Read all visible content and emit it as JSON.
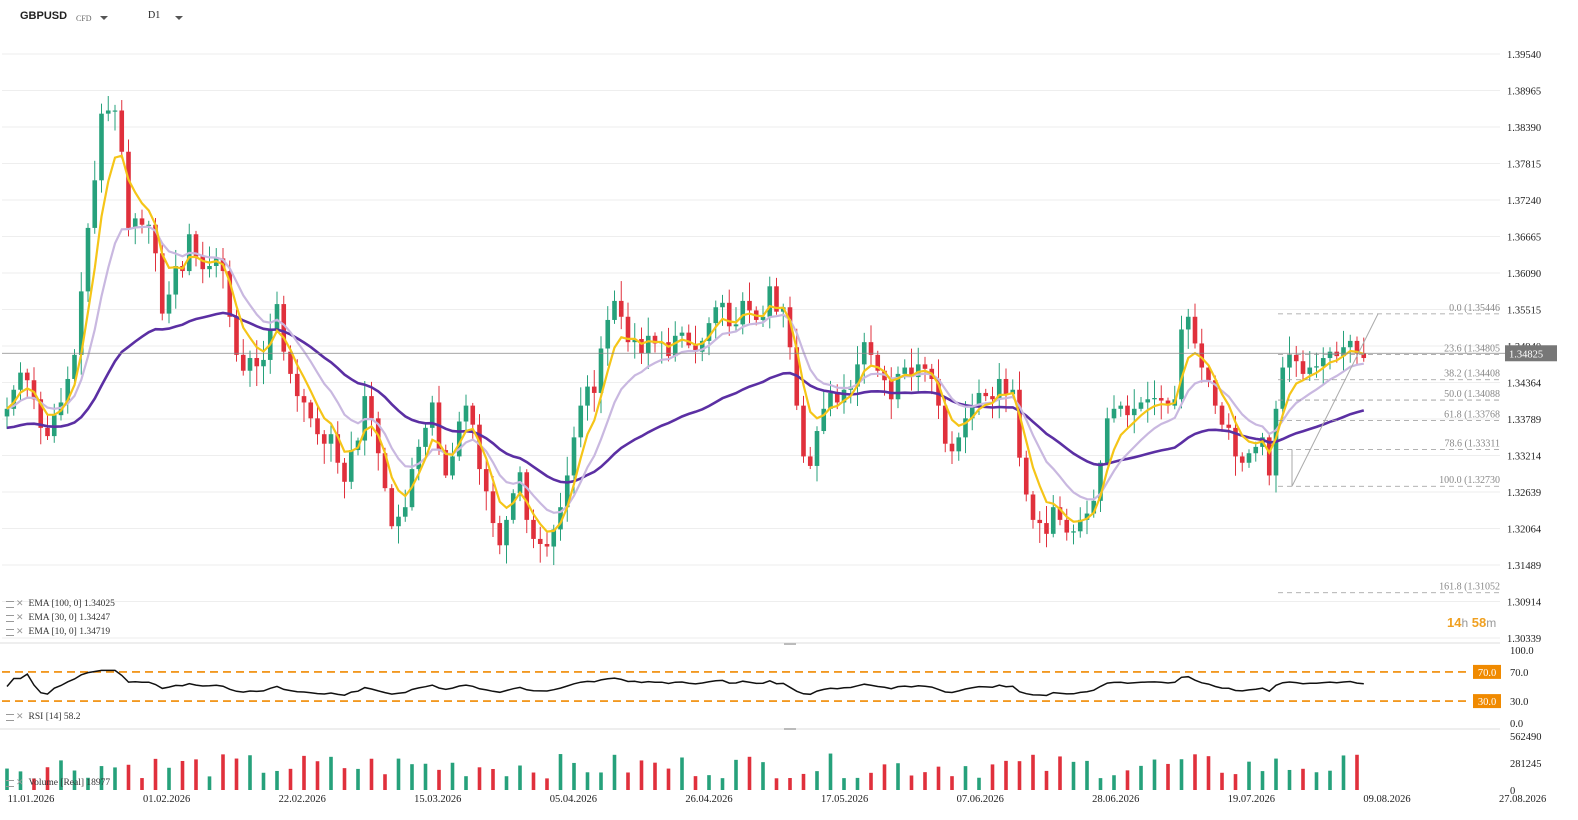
{
  "header": {
    "symbol": "GBPUSD",
    "instrument_type": "CFD",
    "timeframe": "D1"
  },
  "indicators": [
    {
      "label": "EMA [100, 0] 1.34025"
    },
    {
      "label": "EMA [30, 0] 1.34247"
    },
    {
      "label": "EMA [10, 0] 1.34719"
    }
  ],
  "rsi_label": "RSI [14] 58.2",
  "volume_label": "Volume [Real] 18977",
  "countdown": {
    "hours": "14",
    "h": "h",
    "minutes": "58",
    "m": "m"
  },
  "current_price": "1.34825",
  "colors": {
    "up": "#26a17b",
    "down": "#e0303c",
    "ema10": "#f5c518",
    "ema30": "#c9b8e0",
    "ema100": "#5b2fa3",
    "fib": "#999999",
    "rsi_band": "#f08a00",
    "price_tag": "#777777"
  },
  "chart_data": {
    "type": "candlestick",
    "price_axis_ticks": [
      "1.39540",
      "1.38965",
      "1.38390",
      "1.37815",
      "1.37240",
      "1.36665",
      "1.36090",
      "1.35515",
      "1.34940",
      "1.34364",
      "1.33789",
      "1.33214",
      "1.32639",
      "1.32064",
      "1.31489",
      "1.30914",
      "1.30339"
    ],
    "ylim": [
      1.30339,
      1.3954
    ],
    "date_ticks": [
      "11.01.2026",
      "01.02.2026",
      "22.02.2026",
      "15.03.2026",
      "05.04.2026",
      "26.04.2026",
      "17.05.2026",
      "07.06.2026",
      "28.06.2026",
      "19.07.2026",
      "09.08.2026",
      "27.08.2026"
    ],
    "closes": [
      1.3395,
      1.3425,
      1.3452,
      1.344,
      1.341,
      1.3365,
      1.3352,
      1.3385,
      1.3405,
      1.3442,
      1.348,
      1.358,
      1.368,
      1.3755,
      1.386,
      1.3865,
      1.3865,
      1.38,
      1.368,
      1.3695,
      1.3685,
      1.3685,
      1.364,
      1.3545,
      1.3575,
      1.362,
      1.3612,
      1.367,
      1.3635,
      1.3615,
      1.362,
      1.3632,
      1.3612,
      1.354,
      1.348,
      1.3455,
      1.3475,
      1.3462,
      1.3472,
      1.352,
      1.356,
      1.3485,
      1.345,
      1.3415,
      1.3405,
      1.338,
      1.3355,
      1.334,
      1.3355,
      1.331,
      1.328,
      1.333,
      1.3345,
      1.3415,
      1.338,
      1.3325,
      1.327,
      1.321,
      1.3225,
      1.324,
      1.33,
      1.3335,
      1.3365,
      1.3405,
      1.333,
      1.329,
      1.332,
      1.3375,
      1.34,
      1.337,
      1.33,
      1.3265,
      1.3215,
      1.318,
      1.322,
      1.3262,
      1.3295,
      1.322,
      1.319,
      1.3182,
      1.3178,
      1.3205,
      1.324,
      1.329,
      1.335,
      1.34,
      1.343,
      1.342,
      1.349,
      1.3535,
      1.3565,
      1.354,
      1.35,
      1.3505,
      1.3482,
      1.351,
      1.3498,
      1.35,
      1.3478,
      1.351,
      1.3515,
      1.3495,
      1.3485,
      1.3502,
      1.353,
      1.3555,
      1.3562,
      1.3525,
      1.3528,
      1.3565,
      1.355,
      1.3535,
      1.354,
      1.3588,
      1.3548,
      1.3555,
      1.3492,
      1.34,
      1.332,
      1.3305,
      1.336,
      1.3395,
      1.342,
      1.3405,
      1.3425,
      1.343,
      1.3465,
      1.35,
      1.348,
      1.3455,
      1.344,
      1.341,
      1.345,
      1.346,
      1.3445,
      1.3465,
      1.3458,
      1.3442,
      1.34,
      1.334,
      1.3328,
      1.335,
      1.338,
      1.34,
      1.342,
      1.3415,
      1.341,
      1.3442,
      1.3418,
      1.3425,
      1.3318,
      1.326,
      1.322,
      1.3215,
      1.3198,
      1.324,
      1.322,
      1.32,
      1.3202,
      1.322,
      1.323,
      1.325,
      1.331,
      1.338,
      1.3395,
      1.34,
      1.3385,
      1.3395,
      1.3405,
      1.341,
      1.3412,
      1.3408,
      1.34,
      1.341,
      1.352,
      1.354,
      1.3498,
      1.346,
      1.344,
      1.34,
      1.337,
      1.3365,
      1.332,
      1.331,
      1.3325,
      1.3335,
      1.335,
      1.329,
      1.3395,
      1.346,
      1.348,
      1.347,
      1.345,
      1.346,
      1.3462,
      1.3475,
      1.3485,
      1.3478,
      1.3492,
      1.3502,
      1.3482,
      1.3475
    ],
    "ema_series": [
      {
        "name": "EMA [10, 0]",
        "last": 1.34719
      },
      {
        "name": "EMA [30, 0]",
        "last": 1.34247
      },
      {
        "name": "EMA [100, 0]",
        "last": 1.34025
      }
    ],
    "fibonacci": [
      {
        "level": "0.0",
        "price": 1.35446,
        "label": "0.0 (1.35446"
      },
      {
        "level": "23.6",
        "price": 1.34805,
        "label": "23.6 (1.34805"
      },
      {
        "level": "38.2",
        "price": 1.34408,
        "label": "38.2 (1.34408"
      },
      {
        "level": "50.0",
        "price": 1.34088,
        "label": "50.0 (1.34088"
      },
      {
        "level": "61.8",
        "price": 1.33768,
        "label": "61.8 (1.33768"
      },
      {
        "level": "78.6",
        "price": 1.33311,
        "label": "78.6 (1.33311"
      },
      {
        "level": "100.0",
        "price": 1.3273,
        "label": "100.0 (1.32730"
      },
      {
        "level": "161.8",
        "price": 1.31052,
        "label": "161.8 (1.31052"
      }
    ],
    "rsi": {
      "ticks": [
        "100.0",
        "70.0",
        "30.0",
        "0.0"
      ],
      "upper": 70,
      "lower": 30,
      "upper_label": "70.0",
      "lower_label": "30.0",
      "last": 58.2
    },
    "volume": {
      "ticks": [
        "562490",
        "281245",
        "0"
      ],
      "ylim": [
        0,
        562490
      ]
    }
  }
}
